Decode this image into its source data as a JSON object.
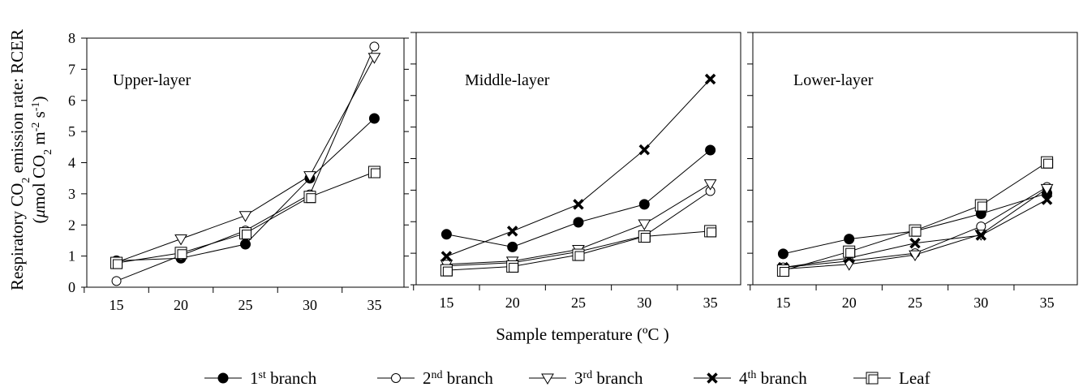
{
  "figure": {
    "ylabel_line1_pre": "Respiratory CO",
    "ylabel_line1_sub": "2",
    "ylabel_line1_post": " emission rate: RCER",
    "ylabel_line2_a": "(",
    "ylabel_line2_mu": "μ",
    "ylabel_line2_b": "mol CO",
    "ylabel_line2_sub": "2",
    "ylabel_line2_c": " m",
    "ylabel_line2_sup1": "-2",
    "ylabel_line2_d": " s",
    "ylabel_line2_sup2": "-1",
    "ylabel_line2_e": ")",
    "xlabel": "Sample temperature (ºC )"
  },
  "chart_data": [
    {
      "type": "line",
      "title": "Upper-layer",
      "x": [
        15,
        20,
        25,
        30,
        35
      ],
      "ylim": [
        0,
        8
      ],
      "yticks": [
        0,
        1,
        2,
        3,
        4,
        5,
        6,
        7,
        8
      ],
      "series": [
        {
          "name": "1st branch",
          "values": [
            0.85,
            0.93,
            1.38,
            3.5,
            5.42
          ]
        },
        {
          "name": "2nd branch",
          "values": [
            0.2,
            1.02,
            1.82,
            2.98,
            7.73
          ]
        },
        {
          "name": "3rd branch",
          "values": [
            0.8,
            1.55,
            2.3,
            3.58,
            7.38
          ]
        },
        {
          "name": "4th branch",
          "values": [
            null,
            null,
            null,
            null,
            null
          ]
        },
        {
          "name": "Leaf",
          "values": [
            0.78,
            1.1,
            1.73,
            2.9,
            3.7
          ]
        }
      ]
    },
    {
      "type": "line",
      "title": "Middle-layer",
      "x": [
        15,
        20,
        25,
        30,
        35
      ],
      "ylim": [
        0,
        8
      ],
      "yticks": [
        0,
        1,
        2,
        3,
        4,
        5,
        6,
        7,
        8
      ],
      "series": [
        {
          "name": "1st branch",
          "values": [
            1.6,
            1.2,
            1.98,
            2.55,
            4.27
          ]
        },
        {
          "name": "2nd branch",
          "values": [
            0.6,
            0.7,
            1.05,
            1.55,
            2.97
          ]
        },
        {
          "name": "3rd branch",
          "values": [
            0.65,
            0.75,
            1.12,
            1.93,
            3.2
          ]
        },
        {
          "name": "4th branch",
          "values": [
            0.9,
            1.7,
            2.55,
            4.28,
            6.52
          ]
        },
        {
          "name": "Leaf",
          "values": [
            0.46,
            0.58,
            0.95,
            1.53,
            1.7
          ]
        }
      ]
    },
    {
      "type": "line",
      "title": "Lower-layer",
      "x": [
        15,
        20,
        25,
        30,
        35
      ],
      "ylim": [
        0,
        8
      ],
      "yticks": [
        0,
        1,
        2,
        3,
        4,
        5,
        6,
        7,
        8
      ],
      "series": [
        {
          "name": "1st branch",
          "values": [
            0.98,
            1.45,
            1.7,
            2.25,
            2.9
          ]
        },
        {
          "name": "2nd branch",
          "values": [
            0.55,
            0.75,
            1.0,
            1.85,
            3.1
          ]
        },
        {
          "name": "3rd branch",
          "values": [
            0.5,
            0.65,
            0.95,
            1.6,
            3.05
          ]
        },
        {
          "name": "4th branch",
          "values": [
            0.55,
            0.85,
            1.32,
            1.57,
            2.7
          ]
        },
        {
          "name": "Leaf",
          "values": [
            0.45,
            1.05,
            1.72,
            2.52,
            3.88
          ]
        }
      ]
    }
  ],
  "legend": [
    {
      "base": "1",
      "sup": "st",
      "rest": " branch",
      "marker": "filled-circle"
    },
    {
      "base": "2",
      "sup": "nd",
      "rest": " branch",
      "marker": "open-circle"
    },
    {
      "base": "3",
      "sup": "rd",
      "rest": " branch",
      "marker": "open-triangle-down"
    },
    {
      "base": "4",
      "sup": "th",
      "rest": " branch",
      "marker": "x-cross"
    },
    {
      "base": "",
      "sup": "",
      "rest": "Leaf",
      "marker": "open-square"
    }
  ]
}
